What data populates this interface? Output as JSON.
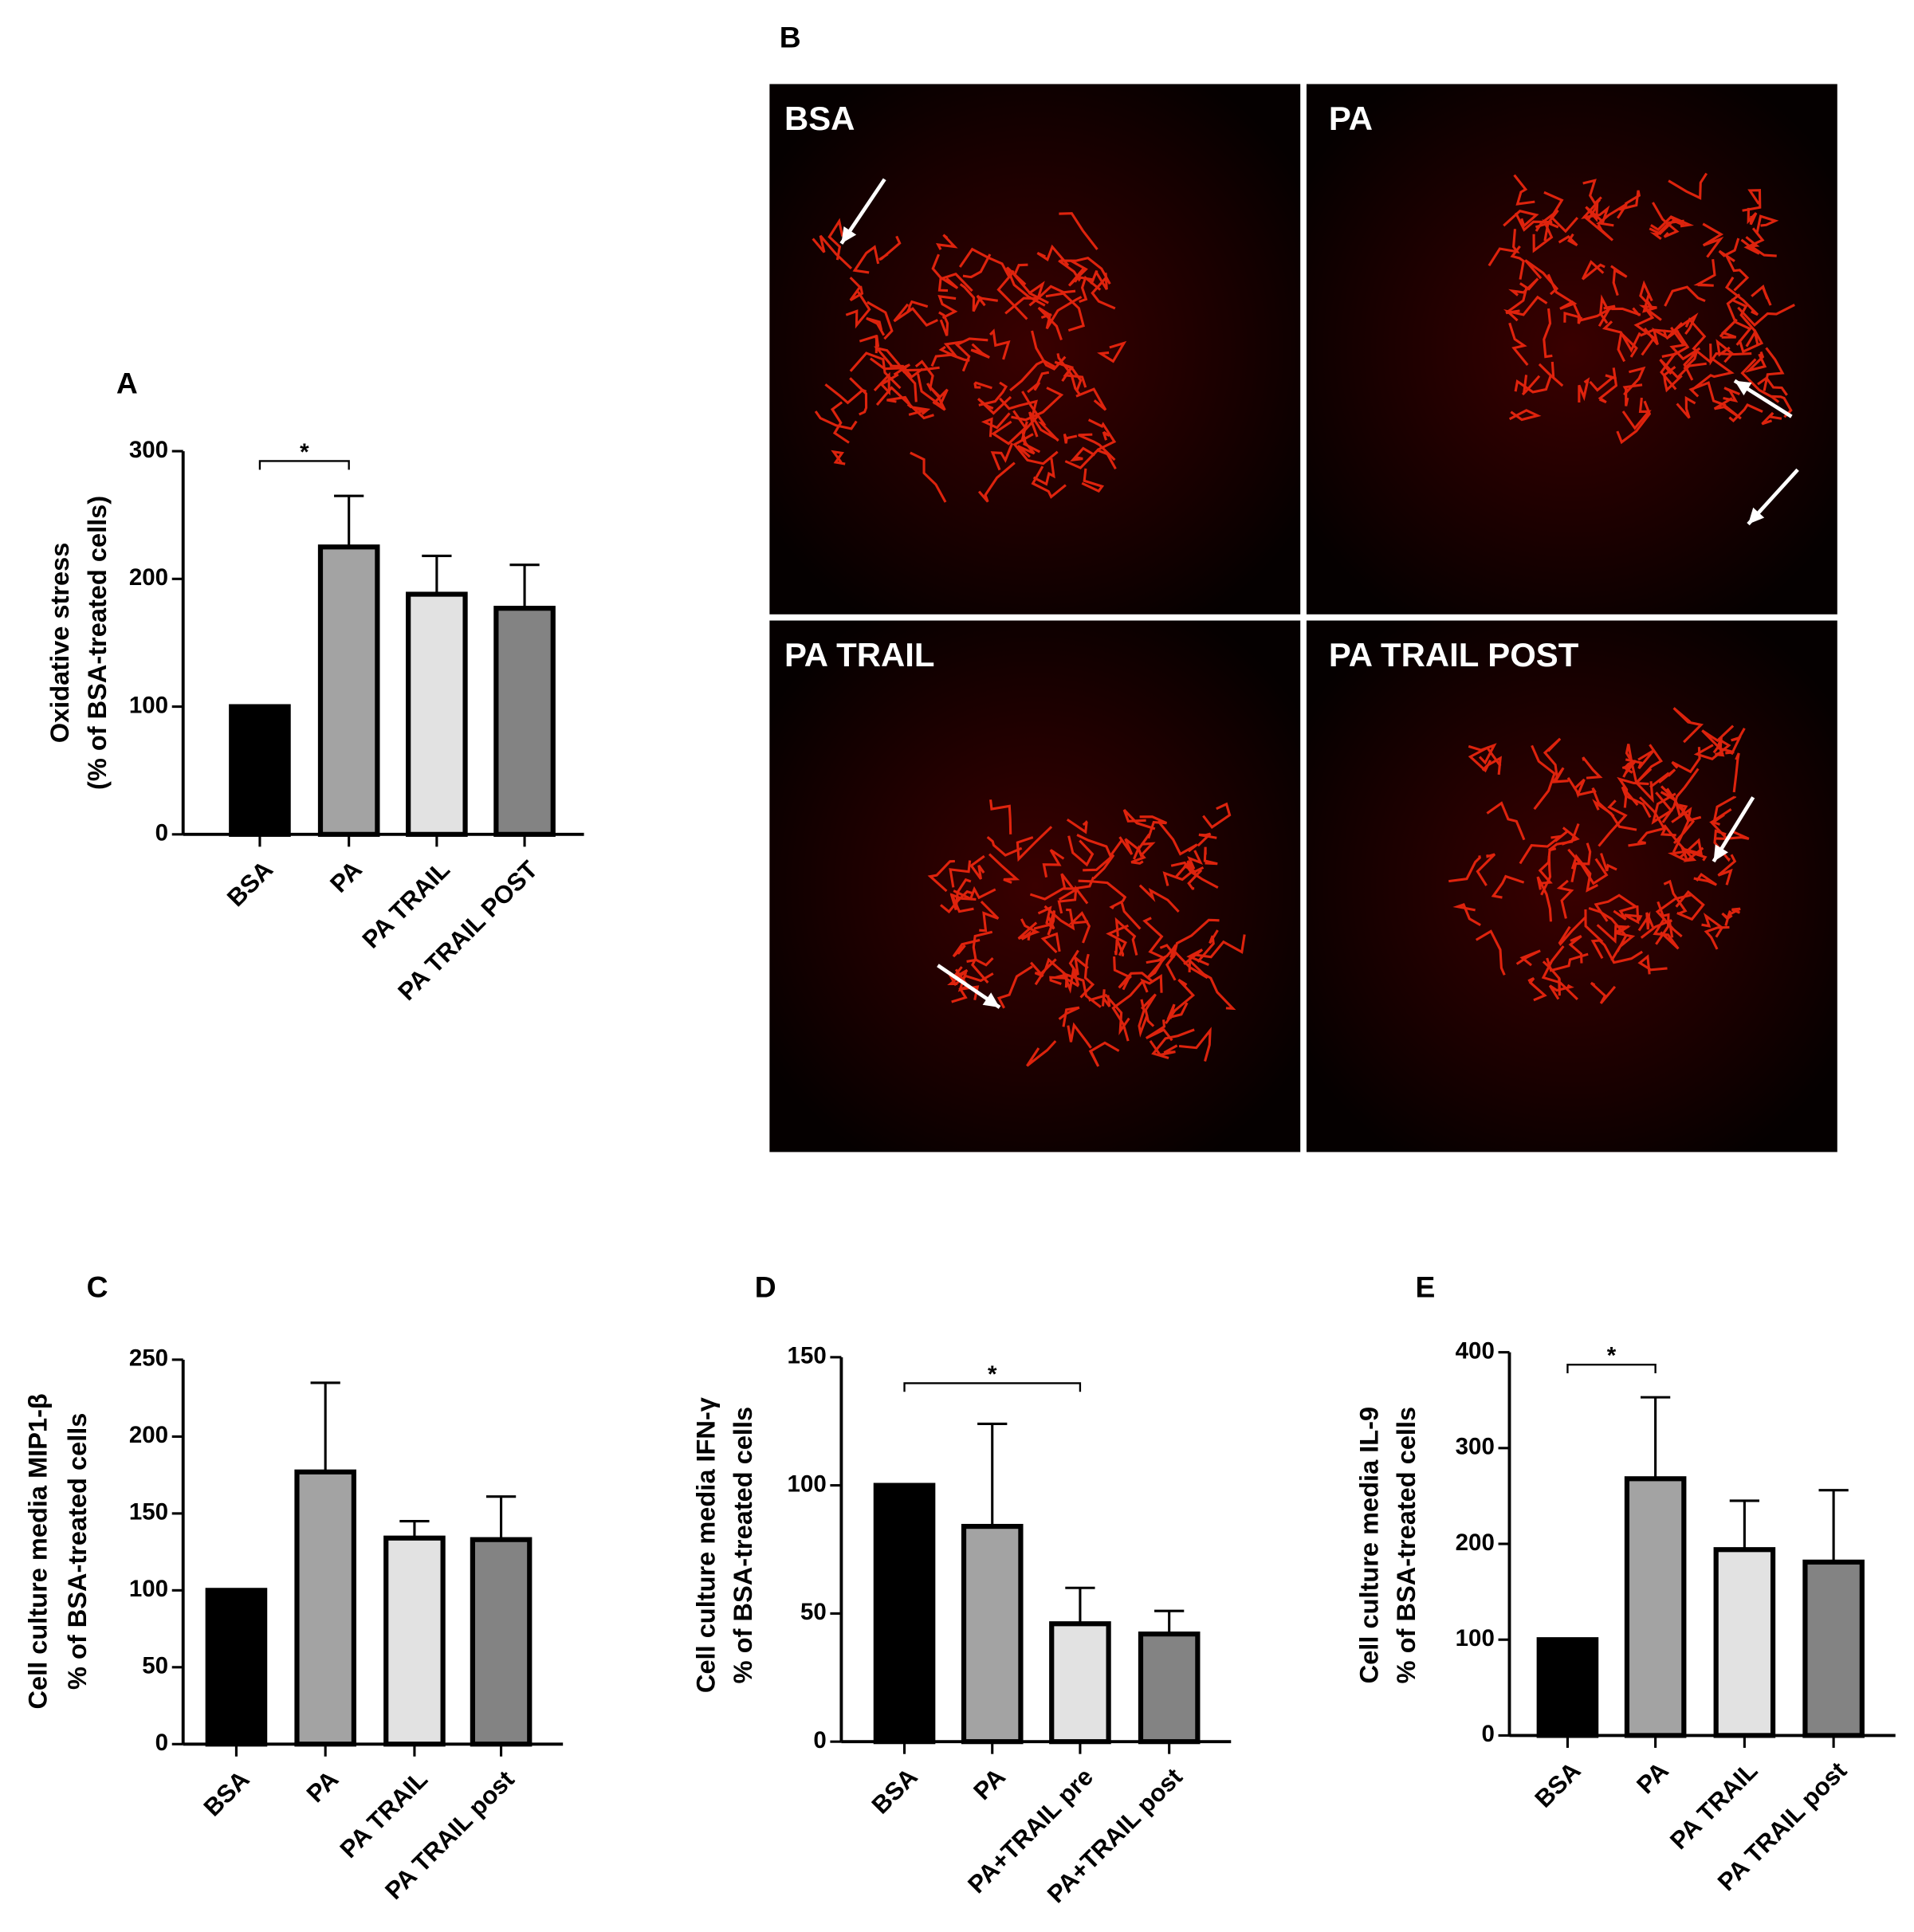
{
  "chart_data": [
    {
      "type": "bar",
      "panel": "A",
      "ylabel": [
        "Oxidative stress",
        "(% of BSA-treated cells)"
      ],
      "categories": [
        "BSA",
        "PA",
        "PA TRAIL",
        "PA TRAIL POST"
      ],
      "values": [
        100,
        225,
        188,
        177
      ],
      "errors": [
        0,
        40,
        30,
        34
      ],
      "colors": [
        "#000000",
        "#a3a3a3",
        "#e2e2e2",
        "#838383"
      ],
      "ylim": [
        0,
        300
      ],
      "yticks": [
        0,
        100,
        200,
        300
      ],
      "significance": [
        {
          "label": "*",
          "between": [
            0,
            1
          ]
        }
      ]
    },
    {
      "type": "bar",
      "panel": "C",
      "ylabel": [
        "Cell culture media MIP1-β",
        "% of BSA-treated cells"
      ],
      "categories": [
        "BSA",
        "PA",
        "PA TRAIL",
        "PA TRAIL post"
      ],
      "values": [
        100,
        177,
        134,
        133
      ],
      "errors": [
        0,
        58,
        11,
        28
      ],
      "colors": [
        "#000000",
        "#a3a3a3",
        "#e2e2e2",
        "#838383"
      ],
      "ylim": [
        0,
        250
      ],
      "yticks": [
        0,
        50,
        100,
        150,
        200,
        250
      ]
    },
    {
      "type": "bar",
      "panel": "D",
      "ylabel": [
        "Cell culture media IFN-γ",
        "% of BSA-treated cells"
      ],
      "categories": [
        "BSA",
        "PA",
        "PA+TRAIL pre",
        "PA+TRAIL post"
      ],
      "values": [
        100,
        84,
        46,
        42
      ],
      "errors": [
        0,
        40,
        14,
        9
      ],
      "colors": [
        "#000000",
        "#a3a3a3",
        "#e2e2e2",
        "#838383"
      ],
      "ylim": [
        0,
        150
      ],
      "yticks": [
        0,
        50,
        100,
        150
      ],
      "significance": [
        {
          "label": "*",
          "between": [
            0,
            2
          ]
        }
      ]
    },
    {
      "type": "bar",
      "panel": "E",
      "ylabel": [
        "Cell culture media IL-9",
        "% of BSA-treated cells"
      ],
      "categories": [
        "BSA",
        "PA",
        "PA TRAIL",
        "PA TRAIL post"
      ],
      "values": [
        100,
        268,
        194,
        181
      ],
      "errors": [
        0,
        85,
        51,
        75
      ],
      "colors": [
        "#000000",
        "#a3a3a3",
        "#e2e2e2",
        "#838383"
      ],
      "ylim": [
        0,
        400
      ],
      "yticks": [
        0,
        100,
        200,
        300,
        400
      ],
      "significance": [
        {
          "label": "*",
          "between": [
            0,
            1
          ]
        }
      ]
    }
  ],
  "figure_b": {
    "panel": "B",
    "images": [
      "BSA",
      "PA",
      "PA TRAIL",
      "PA TRAIL POST"
    ]
  }
}
